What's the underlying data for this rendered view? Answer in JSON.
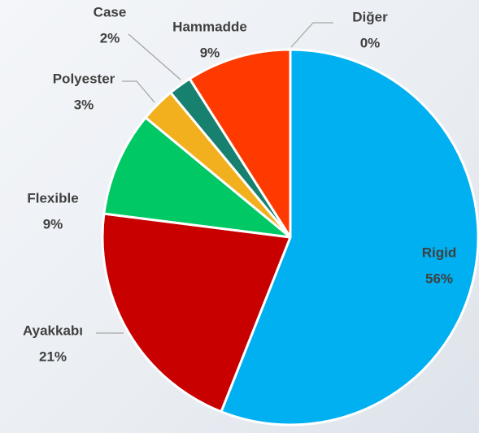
{
  "chart_data": {
    "type": "pie",
    "categories": [
      "Rigid",
      "Ayakkabı",
      "Flexible",
      "Polyester",
      "Case",
      "Hammadde",
      "Diğer"
    ],
    "values": [
      56,
      21,
      9,
      3,
      2,
      9,
      0
    ],
    "value_labels": [
      "56%",
      "21%",
      "9%",
      "3%",
      "2%",
      "9%",
      "0%"
    ],
    "colors": [
      "#00b0f0",
      "#c80000",
      "#00c864",
      "#f2b01e",
      "#17806e",
      "#ff3a00",
      "#a6a6a6"
    ]
  }
}
